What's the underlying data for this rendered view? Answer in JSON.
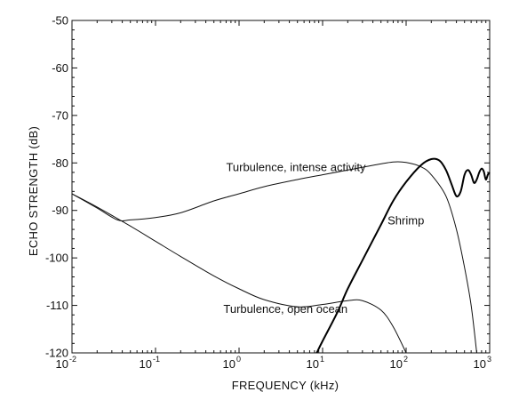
{
  "chart_data": {
    "type": "line",
    "title": "",
    "xlabel": "FREQUENCY  (kHz)",
    "ylabel": "ECHO STRENGTH  (dB)",
    "xscale": "log",
    "xlim": [
      0.01,
      1000
    ],
    "ylim": [
      -120,
      -50
    ],
    "x_ticks": [
      {
        "base": "10",
        "exp": "-2",
        "value": 0.01
      },
      {
        "base": "10",
        "exp": "-1",
        "value": 0.1
      },
      {
        "base": "10",
        "exp": "0",
        "value": 1
      },
      {
        "base": "10",
        "exp": "1",
        "value": 10
      },
      {
        "base": "10",
        "exp": "2",
        "value": 100
      },
      {
        "base": "10",
        "exp": "3",
        "value": 1000
      }
    ],
    "y_ticks": [
      "-120",
      "-110",
      "-100",
      "-90",
      "-80",
      "-70",
      "-60",
      "-50"
    ],
    "grid": false,
    "series": [
      {
        "name": "Turbulence, intense activity",
        "color": "#111111",
        "width": 1,
        "x": [
          0.01,
          0.02,
          0.035,
          0.05,
          0.1,
          0.2,
          0.5,
          1,
          2,
          5,
          10,
          20,
          40,
          70,
          100,
          150,
          200,
          300,
          400,
          500,
          600,
          700
        ],
        "y": [
          -86.5,
          -89.5,
          -92.0,
          -92.0,
          -91.5,
          -90.5,
          -88.0,
          -86.5,
          -85.0,
          -83.5,
          -82.5,
          -81.5,
          -80.5,
          -79.8,
          -79.9,
          -80.8,
          -82.5,
          -87.0,
          -94.0,
          -102.0,
          -110.0,
          -120.0
        ]
      },
      {
        "name": "Turbulence, open ocean",
        "color": "#111111",
        "width": 1,
        "x": [
          0.01,
          0.02,
          0.05,
          0.1,
          0.2,
          0.5,
          1,
          2,
          5,
          10,
          20,
          30,
          50,
          70,
          100
        ],
        "y": [
          -86.5,
          -89.3,
          -93.3,
          -96.5,
          -99.7,
          -103.8,
          -106.5,
          -108.8,
          -110.3,
          -109.8,
          -109.0,
          -109.0,
          -111.0,
          -114.5,
          -120.0
        ]
      },
      {
        "name": "Shrimp",
        "color": "#000000",
        "width": 2,
        "x": [
          8.5,
          10,
          15,
          20,
          30,
          50,
          70,
          100,
          150,
          200,
          250,
          300,
          350,
          400,
          450,
          500,
          550,
          600,
          650,
          700,
          750,
          800,
          850,
          900,
          950,
          1000
        ],
        "y": [
          -120,
          -117.5,
          -111.5,
          -106.5,
          -100.5,
          -93.0,
          -88.0,
          -84.0,
          -80.5,
          -79.2,
          -79.5,
          -81.5,
          -84.5,
          -87.0,
          -86.0,
          -82.5,
          -81.5,
          -82.5,
          -84.2,
          -83.5,
          -82.0,
          -81.2,
          -81.8,
          -83.5,
          -82.5,
          -82.0
        ]
      }
    ],
    "annotations": [
      {
        "text": "Turbulence, intense activity",
        "x": 0.7,
        "y": -81.7,
        "anchor": "start"
      },
      {
        "text": "Shrimp",
        "x": 60,
        "y": -93.0,
        "anchor": "start"
      },
      {
        "text": "Turbulence, open ocean",
        "x": 0.65,
        "y": -111.6,
        "anchor": "start"
      }
    ]
  }
}
